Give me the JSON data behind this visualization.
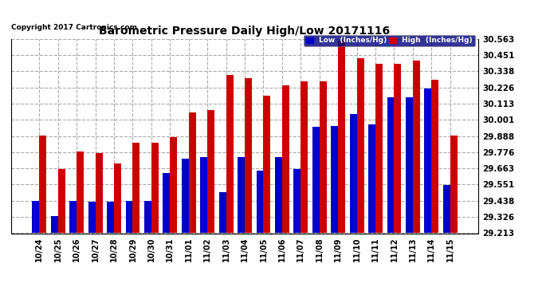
{
  "title": "Barometric Pressure Daily High/Low 20171116",
  "copyright": "Copyright 2017 Cartronics.com",
  "legend_low": "Low  (Inches/Hg)",
  "legend_high": "High  (Inches/Hg)",
  "low_color": "#0000cc",
  "high_color": "#cc0000",
  "bg_color": "#ffffff",
  "plot_bg_color": "#ffffff",
  "grid_color": "#aaaaaa",
  "ymin": 29.213,
  "ymax": 30.563,
  "yticks": [
    29.213,
    29.326,
    29.438,
    29.551,
    29.663,
    29.776,
    29.888,
    30.001,
    30.113,
    30.226,
    30.338,
    30.451,
    30.563
  ],
  "dates": [
    "10/24",
    "10/25",
    "10/26",
    "10/27",
    "10/28",
    "10/29",
    "10/30",
    "10/31",
    "11/01",
    "11/02",
    "11/03",
    "11/04",
    "11/05",
    "11/06",
    "11/07",
    "11/08",
    "11/09",
    "11/10",
    "11/11",
    "11/12",
    "11/13",
    "11/14",
    "11/15"
  ],
  "low_values": [
    29.44,
    29.33,
    29.44,
    29.43,
    29.43,
    29.44,
    29.44,
    29.63,
    29.73,
    29.74,
    29.5,
    29.74,
    29.65,
    29.74,
    29.66,
    29.95,
    29.96,
    30.04,
    29.97,
    30.16,
    30.16,
    30.22,
    29.55
  ],
  "high_values": [
    29.89,
    29.66,
    29.78,
    29.77,
    29.7,
    29.84,
    29.84,
    29.88,
    30.05,
    30.07,
    30.31,
    30.29,
    30.17,
    30.24,
    30.27,
    30.27,
    30.55,
    30.43,
    30.39,
    30.39,
    30.41,
    30.28,
    29.89
  ]
}
